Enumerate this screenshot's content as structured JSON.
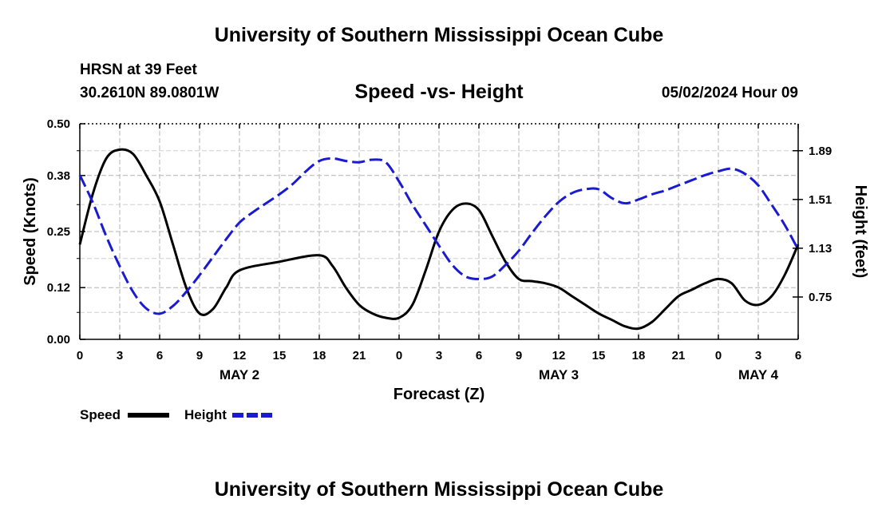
{
  "header": {
    "title": "University of Southern Mississippi Ocean Cube",
    "station": "HRSN at 39 Feet",
    "coords": "30.2610N  89.0801W",
    "date": "05/02/2024 Hour 09"
  },
  "footer": {
    "title": "University of Southern Mississippi Ocean Cube"
  },
  "chart_data": {
    "type": "line",
    "title": "Speed -vs- Height",
    "xlabel": "Forecast (Z)",
    "ylabel": "Speed (Knots)",
    "y2label": "Height (feet)",
    "x_range_hours": [
      0,
      54
    ],
    "ylim": [
      0,
      0.5
    ],
    "y2lim": [
      0.42,
      2.1
    ],
    "grid": true,
    "x_tick_labels": [
      "0",
      "3",
      "6",
      "9",
      "12",
      "15",
      "18",
      "21",
      "0",
      "3",
      "6",
      "9",
      "12",
      "15",
      "18",
      "21",
      "0",
      "3",
      "6"
    ],
    "day_labels": [
      {
        "label": "MAY 2",
        "hour": 12
      },
      {
        "label": "MAY 3",
        "hour": 36
      },
      {
        "label": "MAY 4",
        "hour": 51
      }
    ],
    "y_ticks": [
      0.0,
      0.12,
      0.25,
      0.38,
      0.5
    ],
    "y_tick_labels": [
      "0.00",
      "0.12",
      "0.25",
      "0.38",
      "0.50"
    ],
    "y2_ticks": [
      0.75,
      1.13,
      1.51,
      1.89
    ],
    "y2_tick_labels": [
      "0.75",
      "1.13",
      "1.51",
      "1.89"
    ],
    "legend": {
      "speed": "Speed",
      "height": "Height"
    },
    "colors": {
      "speed": "#000000",
      "height": "#1a1ad0",
      "grid": "#b4b4b4"
    },
    "series": [
      {
        "name": "Speed",
        "axis": "left",
        "x": [
          0,
          1,
          2,
          3,
          4,
          5,
          6,
          7,
          8,
          9,
          10,
          11,
          12,
          15,
          18,
          19,
          20,
          21,
          22,
          23,
          24,
          25,
          26,
          27,
          28,
          29,
          30,
          31,
          32,
          33,
          34,
          35,
          36,
          37,
          38,
          39,
          40,
          41,
          42,
          43,
          44,
          45,
          46,
          47,
          48,
          49,
          50,
          51,
          52,
          53,
          54
        ],
        "values": [
          0.22,
          0.34,
          0.42,
          0.44,
          0.43,
          0.38,
          0.32,
          0.22,
          0.12,
          0.06,
          0.07,
          0.12,
          0.16,
          0.18,
          0.195,
          0.17,
          0.12,
          0.08,
          0.06,
          0.05,
          0.05,
          0.08,
          0.16,
          0.25,
          0.3,
          0.315,
          0.3,
          0.24,
          0.18,
          0.14,
          0.135,
          0.13,
          0.12,
          0.1,
          0.08,
          0.06,
          0.045,
          0.03,
          0.025,
          0.04,
          0.07,
          0.1,
          0.115,
          0.13,
          0.14,
          0.13,
          0.09,
          0.08,
          0.1,
          0.15,
          0.22
        ]
      },
      {
        "name": "Height",
        "axis": "right",
        "x": [
          0,
          1,
          2,
          3,
          4,
          5,
          6,
          7,
          8,
          9,
          10,
          11,
          12,
          13,
          14,
          15,
          16,
          17,
          18,
          19,
          20,
          21,
          22,
          23,
          24,
          25,
          26,
          27,
          28,
          29,
          30,
          31,
          32,
          33,
          34,
          35,
          36,
          37,
          38,
          39,
          40,
          41,
          42,
          43,
          44,
          45,
          46,
          47,
          48,
          49,
          50,
          51,
          52,
          53,
          54
        ],
        "values": [
          1.7,
          1.48,
          1.22,
          0.99,
          0.79,
          0.66,
          0.62,
          0.68,
          0.79,
          0.92,
          1.06,
          1.2,
          1.33,
          1.41,
          1.48,
          1.55,
          1.63,
          1.73,
          1.81,
          1.83,
          1.81,
          1.8,
          1.82,
          1.8,
          1.65,
          1.47,
          1.31,
          1.15,
          1.0,
          0.91,
          0.89,
          0.91,
          1.0,
          1.11,
          1.25,
          1.38,
          1.49,
          1.56,
          1.59,
          1.59,
          1.52,
          1.48,
          1.51,
          1.55,
          1.58,
          1.62,
          1.66,
          1.7,
          1.73,
          1.75,
          1.71,
          1.62,
          1.47,
          1.31,
          1.12
        ]
      }
    ]
  }
}
